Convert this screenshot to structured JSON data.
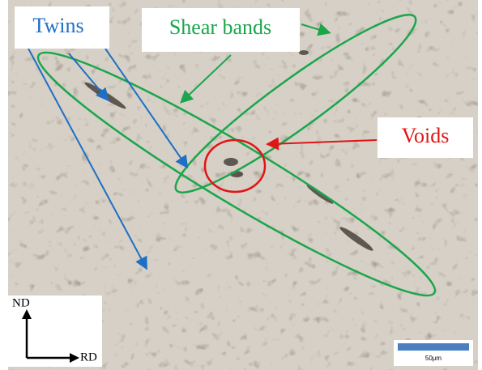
{
  "annotations": {
    "twins": "Twins",
    "shear_bands": "Shear bands",
    "voids": "Voids"
  },
  "axes": {
    "nd": "ND",
    "rd": "RD"
  },
  "scale_bar": {
    "label": "50μm"
  }
}
